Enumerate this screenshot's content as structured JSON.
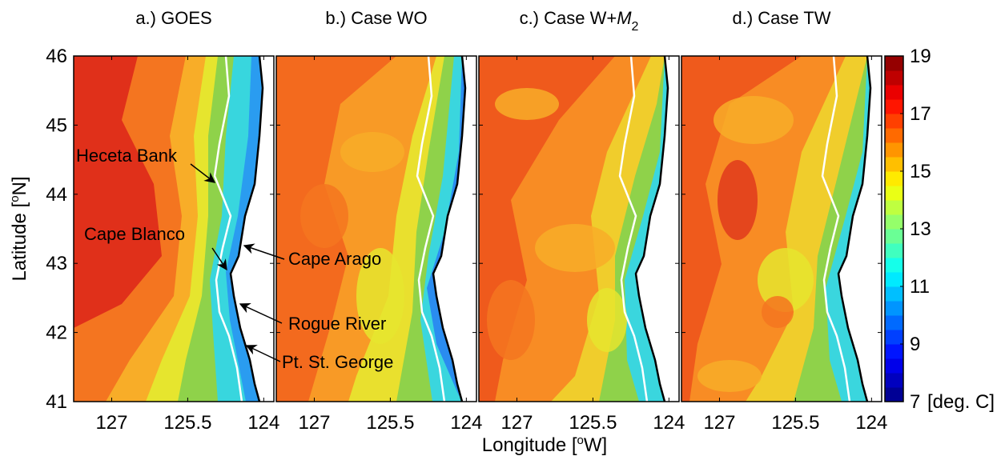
{
  "chart_data": {
    "type": "contour-map",
    "ylabel": [
      "Latitude [",
      "o",
      "N]"
    ],
    "xlabel": [
      "Longitude [",
      "o",
      "W]"
    ],
    "xlim": [
      127.75,
      123.8
    ],
    "ylim": [
      41,
      46
    ],
    "xticks": [
      127,
      125.5,
      124
    ],
    "yticks": [
      41,
      42,
      43,
      44,
      45,
      46
    ],
    "panels": [
      {
        "title": "a.) GOES"
      },
      {
        "title": "b.) Case WO"
      },
      {
        "title": "c.) Case W+",
        "title_symbol": "M",
        "title_subscript": "2"
      },
      {
        "title": "d.) Case TW"
      }
    ],
    "annotations": [
      "Heceta Bank",
      "Cape Blanco",
      "Cape Arago",
      "Rogue River",
      "Pt. St. George"
    ],
    "colorbar": {
      "lim": [
        7,
        19
      ],
      "ticks": [
        7,
        9,
        11,
        13,
        15,
        17,
        19
      ],
      "unit": "[deg. C]",
      "colormap": "jet",
      "levels": 24
    }
  }
}
